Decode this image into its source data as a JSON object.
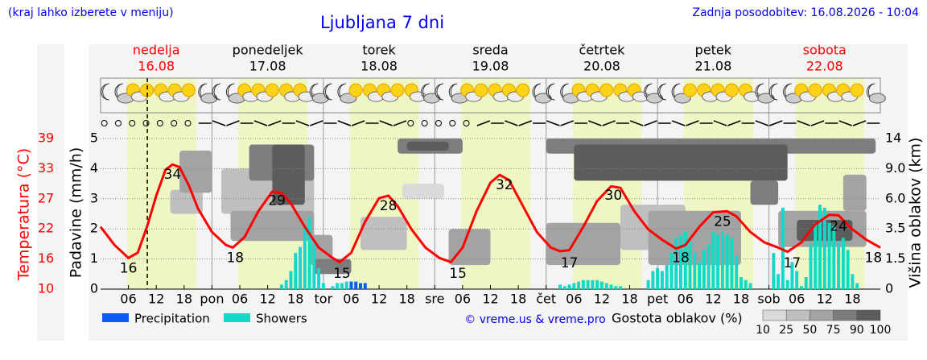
{
  "header": {
    "note": "(kraj lahko izberete v meniju)",
    "title": "Ljubljana 7 dni",
    "updated": "Zadnja posodobitev: 16.08.2026 - 10:04"
  },
  "chart_data": {
    "type": "weather",
    "days": [
      {
        "name": "nedelja",
        "date": "16.08",
        "color": "#ff0000"
      },
      {
        "name": "ponedeljek",
        "date": "17.08",
        "color": "#000000"
      },
      {
        "name": "torek",
        "date": "18.08",
        "color": "#000000"
      },
      {
        "name": "sreda",
        "date": "19.08",
        "color": "#000000"
      },
      {
        "name": "četrtek",
        "date": "20.08",
        "color": "#000000"
      },
      {
        "name": "petek",
        "date": "21.08",
        "color": "#000000"
      },
      {
        "name": "sobota",
        "date": "22.08",
        "color": "#ff0000"
      }
    ],
    "xlim": [
      0,
      168
    ],
    "xticks": [
      {
        "value": 6,
        "label": "06"
      },
      {
        "value": 12,
        "label": "12"
      },
      {
        "value": 18,
        "label": "18"
      },
      {
        "value": 24,
        "label": "pon"
      },
      {
        "value": 30,
        "label": "06"
      },
      {
        "value": 36,
        "label": "12"
      },
      {
        "value": 42,
        "label": "18"
      },
      {
        "value": 48,
        "label": "tor"
      },
      {
        "value": 54,
        "label": "06"
      },
      {
        "value": 60,
        "label": "12"
      },
      {
        "value": 66,
        "label": "18"
      },
      {
        "value": 72,
        "label": "sre"
      },
      {
        "value": 78,
        "label": "06"
      },
      {
        "value": 84,
        "label": "12"
      },
      {
        "value": 90,
        "label": "18"
      },
      {
        "value": 96,
        "label": "čet"
      },
      {
        "value": 102,
        "label": "06"
      },
      {
        "value": 108,
        "label": "12"
      },
      {
        "value": 114,
        "label": "18"
      },
      {
        "value": 120,
        "label": "pet"
      },
      {
        "value": 126,
        "label": "06"
      },
      {
        "value": 132,
        "label": "12"
      },
      {
        "value": 138,
        "label": "18"
      },
      {
        "value": 144,
        "label": "sob"
      },
      {
        "value": 150,
        "label": "06"
      },
      {
        "value": 156,
        "label": "12"
      },
      {
        "value": 162,
        "label": "18"
      }
    ],
    "ylabel": "Padavine (mm/h)",
    "ylim": [
      0,
      5
    ],
    "yticks": [
      0,
      1,
      2,
      3,
      4,
      5
    ],
    "y2label": "Temperatura (°C)",
    "y2color": "#ff0000",
    "y2lim": [
      10,
      39
    ],
    "y2ticks": [
      10,
      {
        "value": 15.8,
        "label": "16"
      },
      {
        "value": 21.6,
        "label": "22"
      },
      {
        "value": 27.4,
        "label": "27"
      },
      {
        "value": 33.2,
        "label": "33"
      },
      39
    ],
    "y3label": "Višina oblakov (km)",
    "y3ticks": [
      0,
      1.5,
      3.5,
      {
        "value": 6,
        "label": "6.0"
      },
      {
        "value": 9,
        "label": "9.0"
      },
      14
    ],
    "grid": true,
    "now": 10.07,
    "series": [
      {
        "name": "Precipitation",
        "color": "#0a5cf5",
        "x": [
          54,
          55,
          56,
          57
        ],
        "values": [
          0.25,
          0.25,
          0.2,
          0.2
        ]
      },
      {
        "name": "Showers",
        "color": "#14d9c8",
        "x": [
          39,
          40,
          41,
          42,
          43,
          44,
          45,
          46,
          47,
          48,
          50,
          51,
          52,
          53,
          99,
          100,
          101,
          102,
          103,
          104,
          105,
          106,
          107,
          108,
          109,
          110,
          111,
          112,
          118,
          119,
          120,
          121,
          122,
          123,
          124,
          125,
          126,
          127,
          128,
          129,
          130,
          131,
          132,
          133,
          134,
          135,
          136,
          137,
          138,
          139,
          140,
          145,
          146,
          147,
          148,
          149,
          150,
          151,
          152,
          153,
          154,
          155,
          156,
          157,
          158,
          159,
          160,
          161,
          162,
          163
        ],
        "values": [
          0.15,
          0.3,
          0.6,
          1.2,
          1.4,
          2.1,
          2.4,
          1.6,
          0.7,
          0.2,
          0.1,
          0.2,
          0.2,
          0.25,
          0.15,
          0.1,
          0.15,
          0.2,
          0.25,
          0.3,
          0.3,
          0.3,
          0.3,
          0.25,
          0.2,
          0.15,
          0.1,
          0.1,
          0.3,
          0.6,
          0.7,
          0.6,
          0.8,
          1.2,
          1.7,
          1.8,
          1.9,
          1.6,
          1.2,
          0.9,
          1.3,
          1.5,
          1.9,
          1.8,
          1.9,
          1.8,
          1.7,
          1.1,
          0.4,
          0.3,
          0.2,
          1.2,
          0.5,
          2.7,
          0.3,
          0.9,
          0.6,
          0.1,
          0.4,
          1.5,
          2.2,
          2.8,
          2.7,
          2.2,
          2.1,
          1.6,
          1.7,
          1.3,
          0.5,
          0.2
        ]
      }
    ],
    "temperature": {
      "color": "#ff0000",
      "x": [
        0,
        3,
        6,
        8,
        10,
        12,
        14,
        15.5,
        17,
        19,
        21,
        24,
        27,
        28.5,
        31,
        34,
        37,
        39,
        41,
        44,
        47,
        50,
        51.5,
        54,
        57,
        60,
        62,
        64,
        67,
        70,
        73,
        75.5,
        78,
        81,
        84,
        86,
        88,
        91,
        94,
        97,
        99,
        101,
        104,
        107,
        110,
        112,
        115,
        118,
        121,
        124,
        126,
        129,
        132,
        135,
        137,
        140,
        143,
        146,
        148,
        151,
        154,
        157,
        159,
        162,
        165,
        168
      ],
      "values": [
        22,
        18.5,
        16,
        17,
        22,
        28,
        33,
        34,
        33.5,
        30,
        25.5,
        21,
        18.5,
        18,
        20,
        25,
        28.8,
        28.5,
        26.5,
        22,
        18,
        16,
        15.2,
        17,
        23,
        27.5,
        28,
        26,
        21.5,
        18,
        16,
        15.2,
        18,
        25,
        30.5,
        32,
        31,
        26,
        21,
        18,
        17.3,
        17.5,
        22,
        27,
        29.8,
        29.5,
        25,
        21.5,
        19.5,
        17.8,
        18.5,
        22,
        24.8,
        25,
        24,
        21,
        19,
        18,
        17.2,
        19,
        22.5,
        24.3,
        24.2,
        21.5,
        19.5,
        18
      ]
    },
    "temp_labels": [
      {
        "x": 6,
        "value": 16
      },
      {
        "x": 15.5,
        "value": 34
      },
      {
        "x": 29,
        "value": 18
      },
      {
        "x": 38,
        "value": 29
      },
      {
        "x": 52,
        "value": 15
      },
      {
        "x": 62,
        "value": 28
      },
      {
        "x": 77,
        "value": 15
      },
      {
        "x": 87,
        "value": 32
      },
      {
        "x": 101,
        "value": 17
      },
      {
        "x": 110.5,
        "value": 30
      },
      {
        "x": 125,
        "value": 18
      },
      {
        "x": 134,
        "value": 25
      },
      {
        "x": 149,
        "value": 17
      },
      {
        "x": 159,
        "value": 24
      },
      {
        "x": 166.5,
        "value": 18
      }
    ],
    "clouds": {
      "title": "Gostota oblakov (%)",
      "scale": [
        10,
        25,
        50,
        75,
        90,
        100
      ],
      "colors": [
        "#dadada",
        "#bfbfbf",
        "#a3a3a3",
        "#7d7d7d",
        "#5c5c5c"
      ],
      "blocks": [
        [
          15,
          22,
          2.5,
          3.3,
          25
        ],
        [
          17,
          24,
          3.2,
          4.6,
          50
        ],
        [
          26,
          46,
          2.5,
          4.0,
          25
        ],
        [
          28,
          46,
          1.6,
          2.6,
          50
        ],
        [
          32,
          46,
          3.6,
          4.8,
          75
        ],
        [
          37,
          44,
          2.8,
          4.8,
          90
        ],
        [
          45,
          50,
          0.8,
          1.8,
          50
        ],
        [
          46,
          54,
          0.5,
          1.0,
          75
        ],
        [
          56,
          66,
          1.3,
          2.4,
          25
        ],
        [
          65,
          74,
          3.0,
          3.5,
          10
        ],
        [
          64,
          78,
          4.5,
          5.0,
          75
        ],
        [
          66,
          75,
          4.6,
          4.9,
          90
        ],
        [
          75,
          84,
          0.8,
          2.0,
          50
        ],
        [
          96,
          112,
          0.8,
          2.2,
          50
        ],
        [
          96,
          167,
          4.5,
          5.0,
          75
        ],
        [
          102,
          148,
          3.6,
          4.8,
          90
        ],
        [
          112,
          126,
          1.3,
          2.8,
          25
        ],
        [
          118,
          138,
          0.8,
          2.6,
          50
        ],
        [
          140,
          146,
          2.8,
          3.6,
          75
        ],
        [
          146,
          165,
          1.4,
          2.6,
          50
        ],
        [
          150,
          162,
          1.6,
          2.3,
          90
        ],
        [
          160,
          165,
          2.6,
          3.8,
          50
        ]
      ]
    },
    "credit": "© vreme.us & vreme.pro"
  }
}
